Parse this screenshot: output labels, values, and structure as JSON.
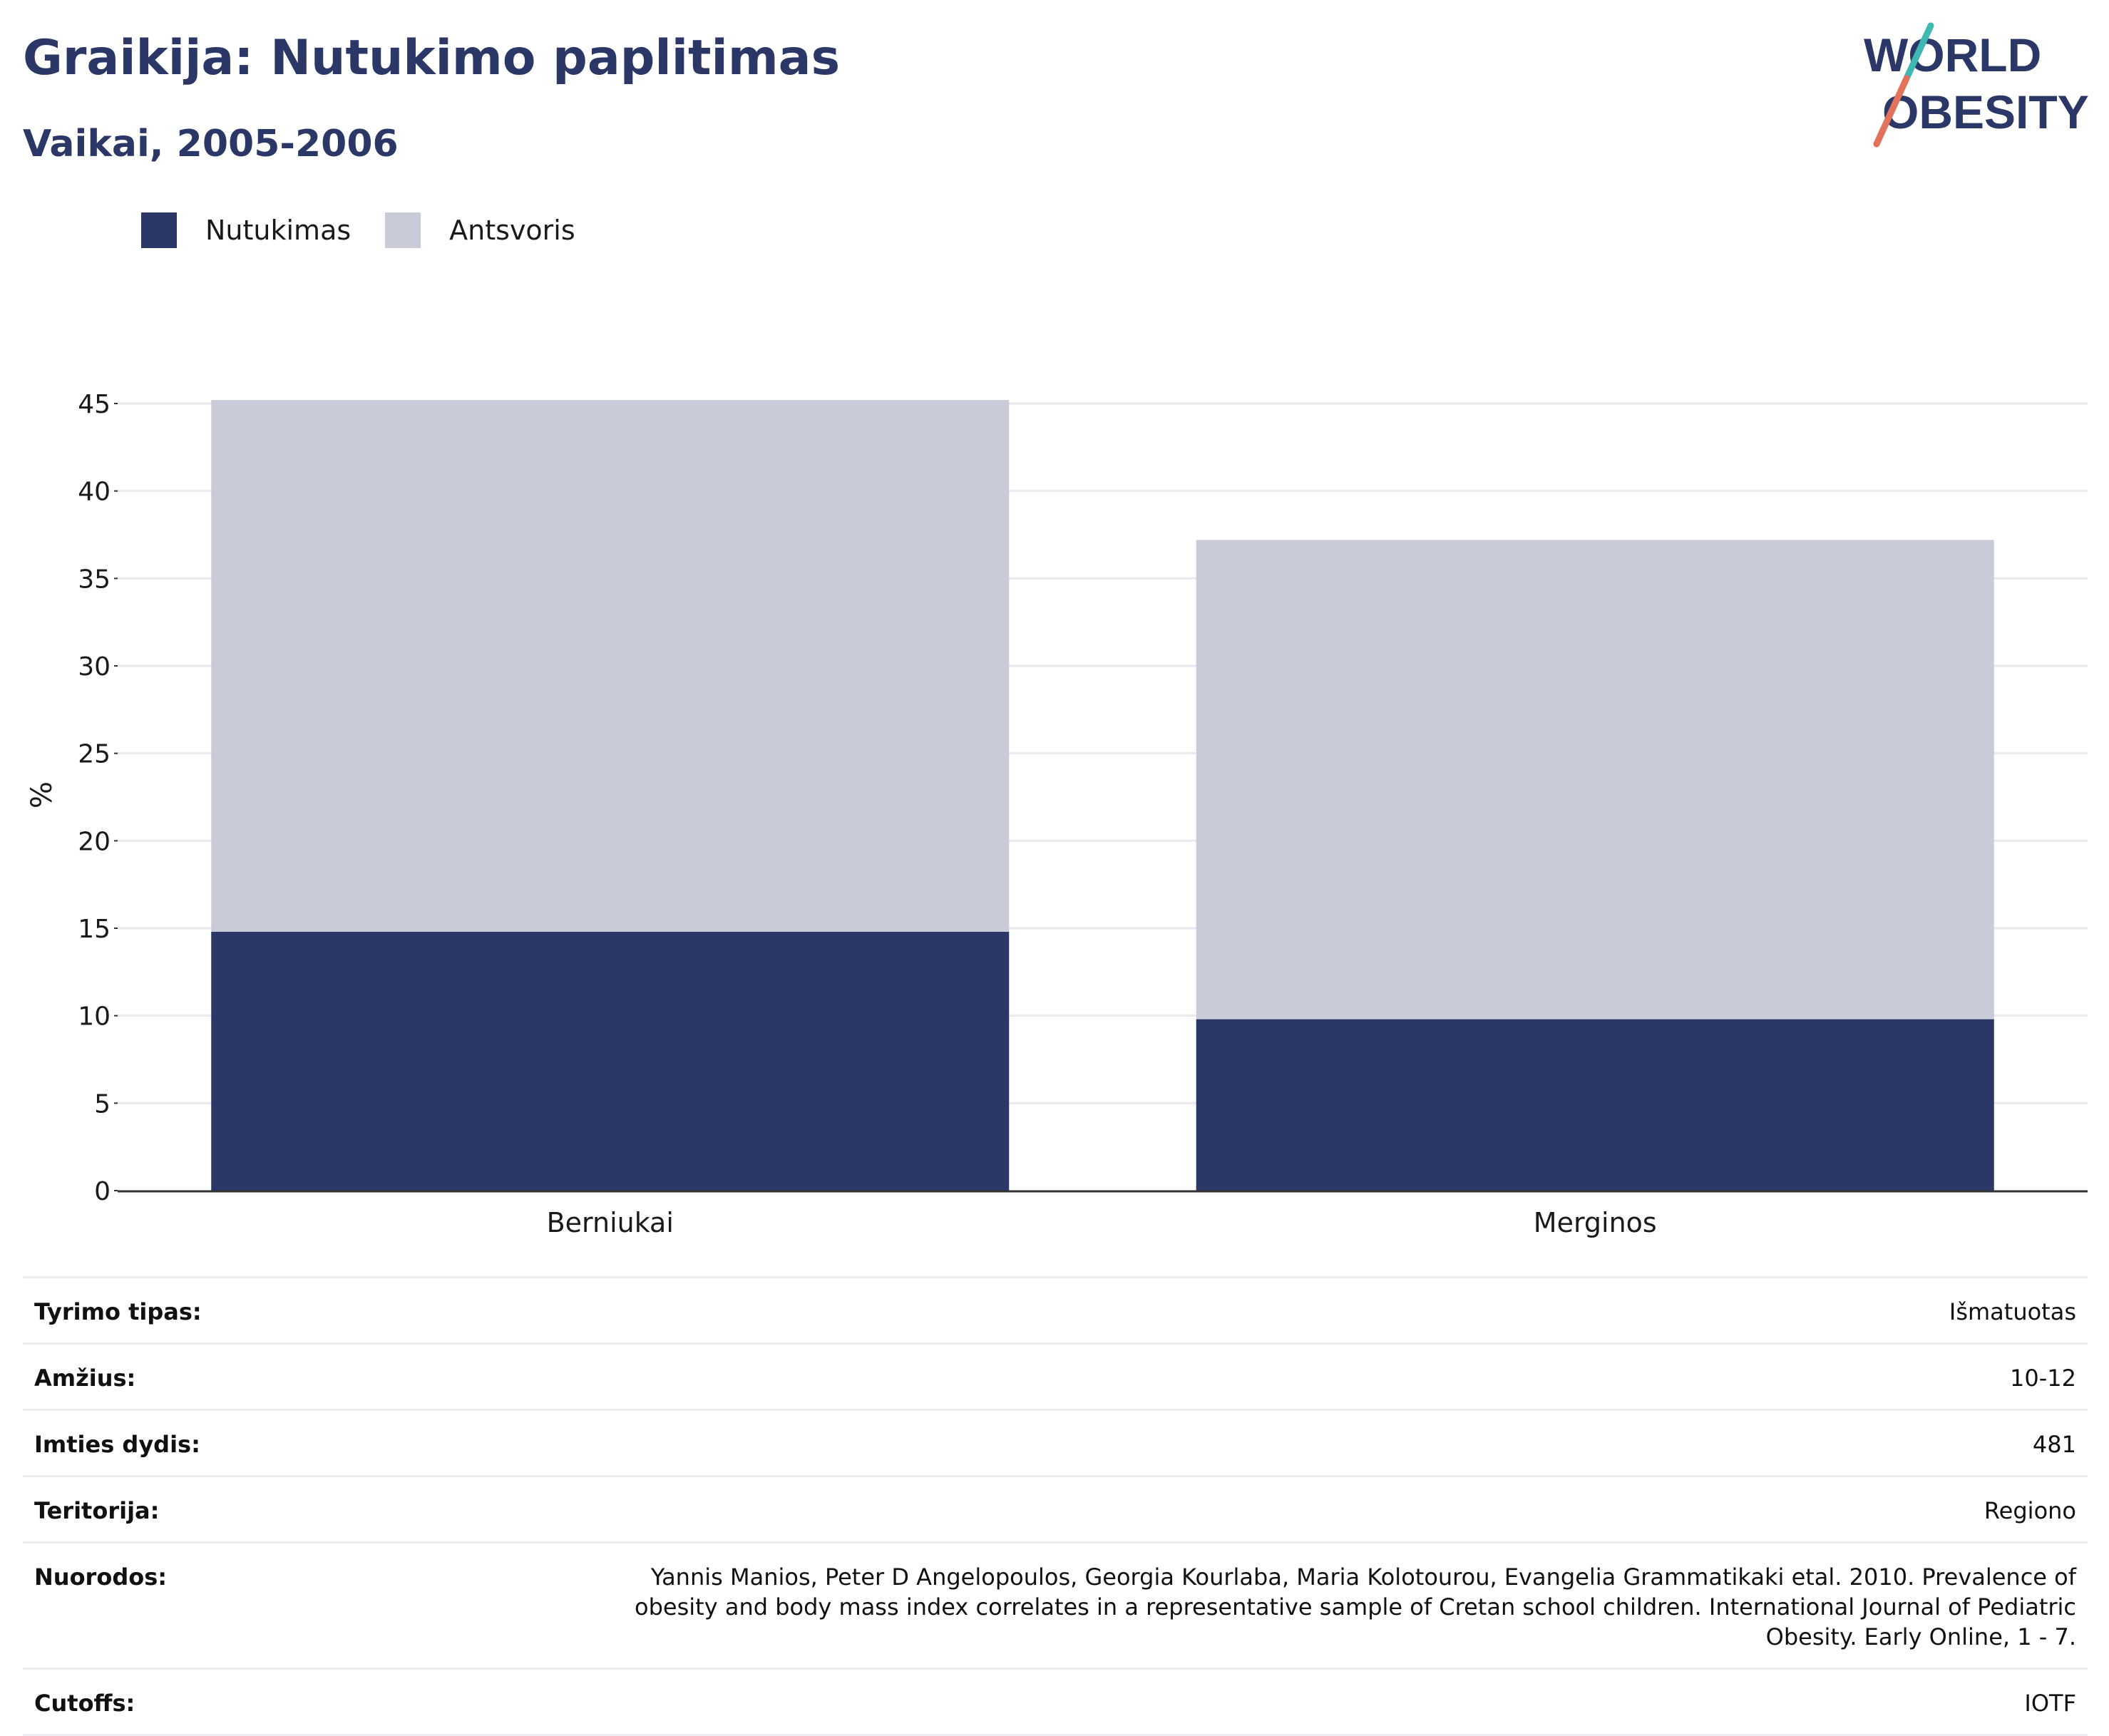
{
  "header": {
    "title": "Graikija: Nutukimo paplitimas",
    "subtitle": "Vaikai, 2005-2006"
  },
  "logo": {
    "line1": "WORLD",
    "line2": "OBESITY"
  },
  "legend": [
    {
      "label": "Nutukimas",
      "color": "#2b3766"
    },
    {
      "label": "Antsvoris",
      "color": "#c9ccd8"
    }
  ],
  "chart_data": {
    "type": "bar",
    "stacked": true,
    "categories": [
      "Berniukai",
      "Merginos"
    ],
    "series": [
      {
        "name": "Nutukimas",
        "values": [
          14.8,
          9.8
        ],
        "color": "#2b3766"
      },
      {
        "name": "Antsvoris",
        "values": [
          30.4,
          27.4
        ],
        "color": "#c9ccd8"
      }
    ],
    "ylabel": "%",
    "ylim": [
      0,
      45
    ],
    "yticks": [
      0,
      5,
      10,
      15,
      20,
      25,
      30,
      35,
      40,
      45
    ],
    "grid": true,
    "legend_position": "top-left"
  },
  "info_table": [
    {
      "key": "Tyrimo tipas:",
      "value": "Išmatuotas"
    },
    {
      "key": "Amžius:",
      "value": "10-12"
    },
    {
      "key": "Imties dydis:",
      "value": "481"
    },
    {
      "key": "Teritorija:",
      "value": "Regiono"
    },
    {
      "key": "Nuorodos:",
      "value": "Yannis Manios, Peter D Angelopoulos, Georgia Kourlaba, Maria Kolotourou, Evangelia Grammatikaki etal. 2010. Prevalence of obesity and body mass index correlates in a representative sample of Cretan school children. International Journal of Pediatric Obesity. Early Online, 1 - 7."
    },
    {
      "key": "Cutoffs:",
      "value": "IOTF"
    }
  ]
}
